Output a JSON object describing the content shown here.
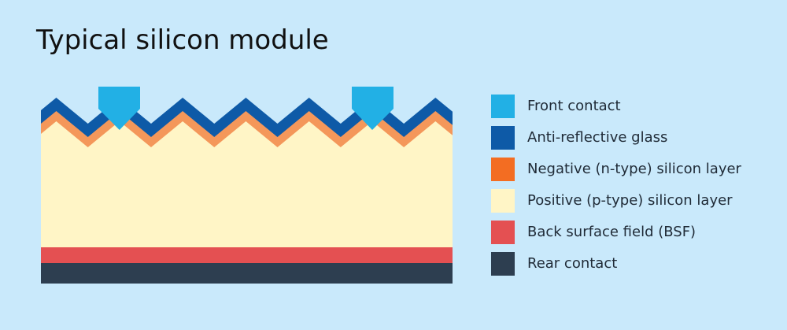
{
  "title": "Typical silicon module",
  "legend": {
    "items": [
      {
        "label": "Front contact",
        "color": "#22b0e5"
      },
      {
        "label": "Anti-reflective glass",
        "color": "#0e5aa7"
      },
      {
        "label": "Negative (n-type) silicon layer",
        "color": "#f36d22"
      },
      {
        "label": "Positive (p-type) silicon layer",
        "color": "#fff5c6"
      },
      {
        "label": "Back surface field (BSF)",
        "color": "#e45052"
      },
      {
        "label": "Rear contact",
        "color": "#2d3e50"
      }
    ]
  }
}
